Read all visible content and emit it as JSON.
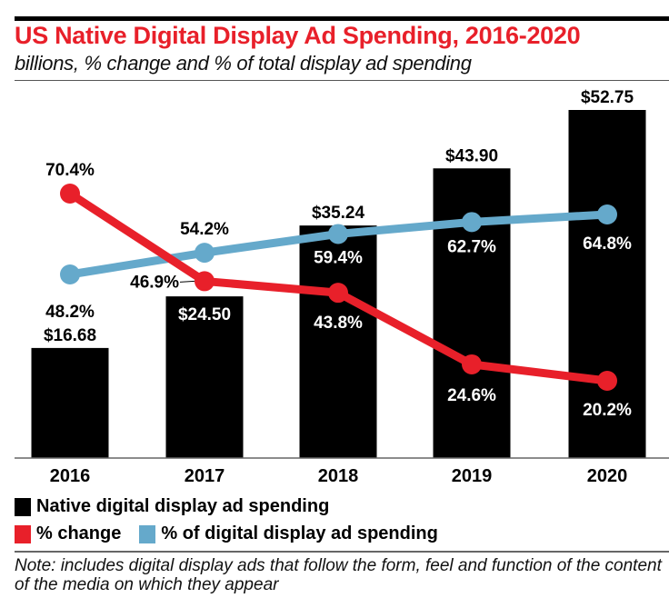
{
  "chart_data": {
    "type": "bar",
    "title": "US Native Digital Display Ad Spending, 2016-2020",
    "subtitle": "billions, % change and % of total display ad spending",
    "categories": [
      "2016",
      "2017",
      "2018",
      "2019",
      "2020"
    ],
    "series": [
      {
        "name": "Native digital display ad spending",
        "type": "bar",
        "color": "#000000",
        "values": [
          16.68,
          24.5,
          35.24,
          43.9,
          52.75
        ],
        "labels": [
          "$16.68",
          "$24.50",
          "$35.24",
          "$43.90",
          "$52.75"
        ]
      },
      {
        "name": "% change",
        "type": "line",
        "color": "#e8202a",
        "values": [
          70.4,
          46.9,
          43.8,
          24.6,
          20.2
        ],
        "labels": [
          "70.4%",
          "46.9%",
          "43.8%",
          "24.6%",
          "20.2%"
        ]
      },
      {
        "name": "% of digital display ad spending",
        "type": "line",
        "color": "#65a9cb",
        "values": [
          48.2,
          54.2,
          59.4,
          62.7,
          64.8
        ],
        "labels": [
          "48.2%",
          "54.2%",
          "59.4%",
          "62.7%",
          "64.8%"
        ]
      }
    ],
    "xlabel": "",
    "ylabel": "",
    "ylim": [
      0,
      52.75
    ],
    "grid": false,
    "legend_position": "bottom-left"
  },
  "legend": {
    "bar_label": "Native digital display ad spending",
    "change_label": "% change",
    "share_label": "% of digital display ad spending"
  },
  "note": "Note: includes digital display ads that follow the form, feel and function of the content of the media on which they appear"
}
